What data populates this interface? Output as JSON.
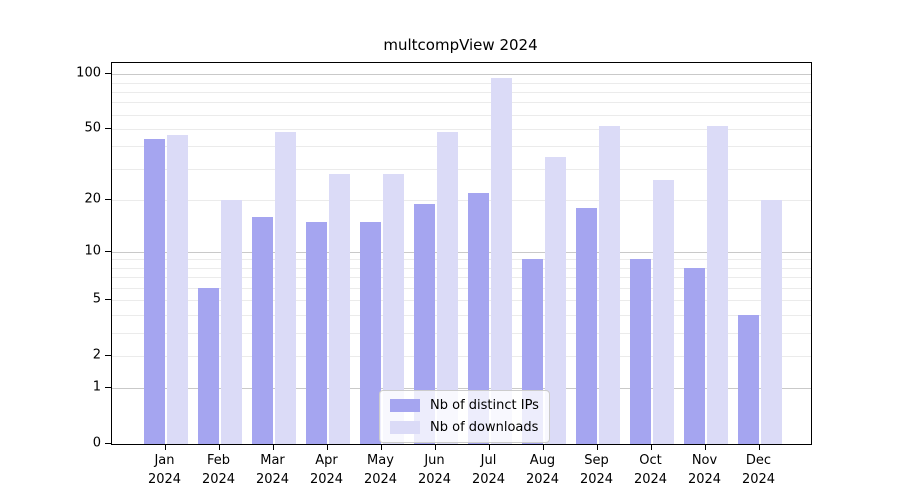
{
  "figure": {
    "title": "multcompView 2024"
  },
  "chart_data": {
    "type": "bar",
    "title": "multcompView 2024",
    "xlabel": "",
    "ylabel": "",
    "categories": [
      "Jan",
      "Feb",
      "Mar",
      "Apr",
      "May",
      "Jun",
      "Jul",
      "Aug",
      "Sep",
      "Oct",
      "Nov",
      "Dec"
    ],
    "category_year": "2024",
    "series": [
      {
        "name": "Nb of distinct IPs",
        "color": "#a5a5f0",
        "values": [
          44,
          6,
          16,
          15,
          15,
          19,
          22,
          9,
          18,
          9,
          8,
          4
        ]
      },
      {
        "name": "Nb of downloads",
        "color": "#dbdbf7",
        "values": [
          46,
          20,
          48,
          28,
          28,
          48,
          95,
          35,
          52,
          26,
          52,
          20
        ]
      }
    ],
    "yscale": "log1p",
    "ylim": [
      0,
      115
    ],
    "ytick_values": [
      0,
      1,
      2,
      5,
      10,
      20,
      50,
      100
    ],
    "major_gridlines": [
      1,
      10,
      100
    ],
    "minor_gridlines": [
      2,
      3,
      4,
      5,
      6,
      7,
      8,
      9,
      20,
      30,
      40,
      50,
      60,
      70,
      80,
      90
    ],
    "grid": true,
    "legend": {
      "position": "lower center",
      "entries": [
        "Nb of distinct IPs",
        "Nb of downloads"
      ]
    }
  }
}
